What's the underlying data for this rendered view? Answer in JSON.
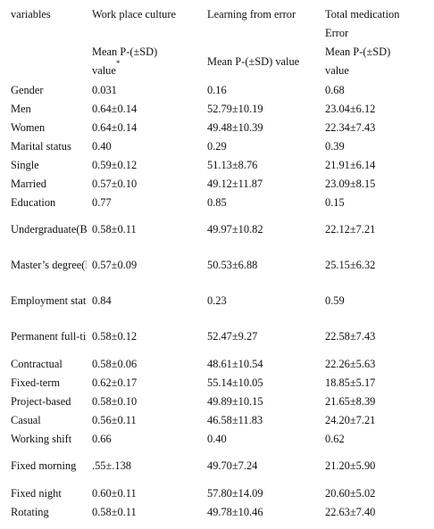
{
  "table": {
    "headers": {
      "variables": "variables",
      "col1": "Work place culture",
      "col2": "Learning from error",
      "col3_line1": "Total medication",
      "col3_line2": "Error"
    },
    "subheaders": {
      "col1_line1": "Mean P-(±SD)",
      "col1_line2": "value",
      "col1_footnote": "*",
      "col2": "Mean P-(±SD) value",
      "col3_line1": "Mean P-(±SD)",
      "col3_line2": "value"
    },
    "rows": [
      {
        "label": "Gender",
        "c1": "0.031",
        "c2": "0.16",
        "c3": "0.68"
      },
      {
        "label": "Men",
        "c1": "0.64±0.14",
        "c2": "52.79±10.19",
        "c3": "23.04±6.12"
      },
      {
        "label": "Women",
        "c1": "0.64±0.14",
        "c2": "49.48±10.39",
        "c3": "22.34±7.43"
      },
      {
        "label": "Marital status",
        "c1": "0.40",
        "c2": "0.29",
        "c3": "0.39"
      },
      {
        "label": "Single",
        "c1": "0.59±0.12",
        "c2": "51.13±8.76",
        "c3": "21.91±6.14"
      },
      {
        "label": "Married",
        "c1": "0.57±0.10",
        "c2": "49.12±11.87",
        "c3": "23.09±8.15"
      },
      {
        "label": "Education",
        "c1": "0.77",
        "c2": "0.85",
        "c3": "0.15"
      },
      {
        "label": "Undergraduate(BSc)",
        "c1": "0.58±0.11",
        "c2": "49.97±10.82",
        "c3": "22.12±7.21"
      },
      {
        "label": "Master’s degree(MSc)",
        "c1": "0.57±0.09",
        "c2": "50.53±6.88",
        "c3": "25.15±6.32"
      },
      {
        "label": "Employment status",
        "c1": "0.84",
        "c2": "0.23",
        "c3": "0.59"
      },
      {
        "label": "Permanent full-time",
        "c1": "0.58±0.12",
        "c2": "52.47±9.27",
        "c3": "22.58±7.43"
      },
      {
        "label": "Contractual",
        "c1": "0.58±0.06",
        "c2": "48.61±10.54",
        "c3": "22.26±5.63"
      },
      {
        "label": "Fixed-term",
        "c1": "0.62±0.17",
        "c2": "55.14±10.05",
        "c3": "18.85±5.17"
      },
      {
        "label": "Project-based",
        "c1": "0.58±0.10",
        "c2": "49.89±10.15",
        "c3": "21.65±8.39"
      },
      {
        "label": "Casual",
        "c1": "0.56±0.11",
        "c2": "46.58±11.83",
        "c3": "24.20±7.21"
      },
      {
        "label": "Working shift",
        "c1": "0.66",
        "c2": "0.40",
        "c3": "0.62"
      },
      {
        "label": "Fixed morning",
        "c1": ".55±.138",
        "c2": "49.70±7.24",
        "c3": "21.20±5.90"
      },
      {
        "label": "Fixed night",
        "c1": "0.60±0.11",
        "c2": "57.80±14.09",
        "c3": "20.60±5.02"
      },
      {
        "label": "Rotating",
        "c1": "0.58±0.11",
        "c2": "49.78±10.46",
        "c3": "22.63±7.40"
      }
    ]
  }
}
